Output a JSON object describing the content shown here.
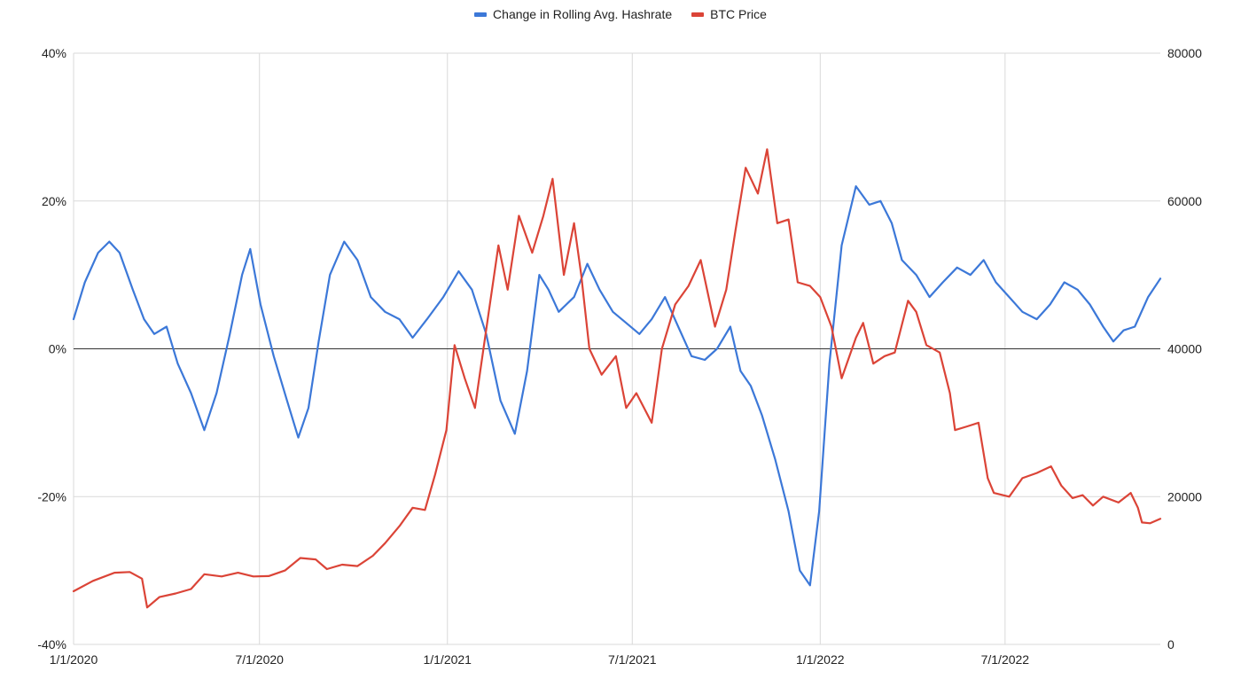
{
  "chart_data": {
    "type": "line",
    "title": "",
    "legend_position": "top-center",
    "grid": true,
    "x": {
      "type": "date",
      "min": "2020-01-01",
      "max": "2022-11-30",
      "ticks": [
        "2020-01-01",
        "2020-07-01",
        "2021-01-01",
        "2021-07-01",
        "2022-01-01",
        "2022-07-01"
      ],
      "tick_labels": [
        "1/1/2020",
        "7/1/2020",
        "1/1/2021",
        "7/1/2021",
        "1/1/2022",
        "7/1/2022"
      ]
    },
    "y_left": {
      "min": -40,
      "max": 40,
      "ticks": [
        -40,
        -20,
        0,
        20,
        40
      ],
      "tick_labels": [
        "-40%",
        "-20%",
        "0%",
        "20%",
        "40%"
      ]
    },
    "y_right": {
      "min": 0,
      "max": 80000,
      "ticks": [
        0,
        20000,
        40000,
        60000,
        80000
      ],
      "tick_labels": [
        "0",
        "20000",
        "40000",
        "60000",
        "80000"
      ]
    },
    "series": [
      {
        "name": "Change in Rolling Avg. Hashrate",
        "axis": "left",
        "color": "#3c78d8",
        "points": [
          [
            "2020-01-01",
            4
          ],
          [
            "2020-01-12",
            9
          ],
          [
            "2020-01-25",
            13
          ],
          [
            "2020-02-05",
            14.5
          ],
          [
            "2020-02-15",
            13
          ],
          [
            "2020-02-28",
            8
          ],
          [
            "2020-03-10",
            4
          ],
          [
            "2020-03-20",
            2
          ],
          [
            "2020-04-01",
            3
          ],
          [
            "2020-04-12",
            -2
          ],
          [
            "2020-04-25",
            -6
          ],
          [
            "2020-05-08",
            -11
          ],
          [
            "2020-05-20",
            -6
          ],
          [
            "2020-06-02",
            2
          ],
          [
            "2020-06-14",
            10
          ],
          [
            "2020-06-22",
            13.5
          ],
          [
            "2020-07-02",
            6
          ],
          [
            "2020-07-15",
            -1
          ],
          [
            "2020-07-28",
            -7
          ],
          [
            "2020-08-08",
            -12
          ],
          [
            "2020-08-18",
            -8
          ],
          [
            "2020-08-28",
            1
          ],
          [
            "2020-09-08",
            10
          ],
          [
            "2020-09-22",
            14.5
          ],
          [
            "2020-10-05",
            12
          ],
          [
            "2020-10-18",
            7
          ],
          [
            "2020-11-01",
            5
          ],
          [
            "2020-11-15",
            4
          ],
          [
            "2020-11-28",
            1.5
          ],
          [
            "2020-12-12",
            4
          ],
          [
            "2020-12-28",
            7
          ],
          [
            "2021-01-12",
            10.5
          ],
          [
            "2021-01-25",
            8
          ],
          [
            "2021-02-08",
            2
          ],
          [
            "2021-02-22",
            -7
          ],
          [
            "2021-03-08",
            -11.5
          ],
          [
            "2021-03-20",
            -3
          ],
          [
            "2021-04-01",
            10
          ],
          [
            "2021-04-10",
            8
          ],
          [
            "2021-04-20",
            5
          ],
          [
            "2021-05-05",
            7
          ],
          [
            "2021-05-18",
            11.5
          ],
          [
            "2021-05-30",
            8
          ],
          [
            "2021-06-12",
            5
          ],
          [
            "2021-06-25",
            3.5
          ],
          [
            "2021-07-08",
            2
          ],
          [
            "2021-07-20",
            4
          ],
          [
            "2021-08-02",
            7
          ],
          [
            "2021-08-15",
            3
          ],
          [
            "2021-08-28",
            -1
          ],
          [
            "2021-09-10",
            -1.5
          ],
          [
            "2021-09-22",
            0
          ],
          [
            "2021-10-05",
            3
          ],
          [
            "2021-10-15",
            -3
          ],
          [
            "2021-10-25",
            -5
          ],
          [
            "2021-11-05",
            -9
          ],
          [
            "2021-11-18",
            -15
          ],
          [
            "2021-12-01",
            -22
          ],
          [
            "2021-12-12",
            -30
          ],
          [
            "2021-12-22",
            -32
          ],
          [
            "2021-12-31",
            -22
          ],
          [
            "2022-01-10",
            -2
          ],
          [
            "2022-01-22",
            14
          ],
          [
            "2022-02-05",
            22
          ],
          [
            "2022-02-18",
            19.5
          ],
          [
            "2022-03-01",
            20
          ],
          [
            "2022-03-12",
            17
          ],
          [
            "2022-03-22",
            12
          ],
          [
            "2022-04-05",
            10
          ],
          [
            "2022-04-18",
            7
          ],
          [
            "2022-05-01",
            9
          ],
          [
            "2022-05-15",
            11
          ],
          [
            "2022-05-28",
            10
          ],
          [
            "2022-06-10",
            12
          ],
          [
            "2022-06-22",
            9
          ],
          [
            "2022-07-05",
            7
          ],
          [
            "2022-07-18",
            5
          ],
          [
            "2022-08-01",
            4
          ],
          [
            "2022-08-14",
            6
          ],
          [
            "2022-08-28",
            9
          ],
          [
            "2022-09-10",
            8
          ],
          [
            "2022-09-22",
            6
          ],
          [
            "2022-10-05",
            3
          ],
          [
            "2022-10-15",
            1
          ],
          [
            "2022-10-25",
            2.5
          ],
          [
            "2022-11-05",
            3
          ],
          [
            "2022-11-18",
            7
          ],
          [
            "2022-11-30",
            9.5
          ]
        ]
      },
      {
        "name": "BTC Price",
        "axis": "right",
        "color": "#db4437",
        "points": [
          [
            "2020-01-01",
            7200
          ],
          [
            "2020-01-20",
            8600
          ],
          [
            "2020-02-10",
            9700
          ],
          [
            "2020-02-25",
            9800
          ],
          [
            "2020-03-08",
            8900
          ],
          [
            "2020-03-13",
            5000
          ],
          [
            "2020-03-25",
            6400
          ],
          [
            "2020-04-10",
            6900
          ],
          [
            "2020-04-25",
            7500
          ],
          [
            "2020-05-08",
            9500
          ],
          [
            "2020-05-25",
            9200
          ],
          [
            "2020-06-10",
            9700
          ],
          [
            "2020-06-25",
            9200
          ],
          [
            "2020-07-10",
            9250
          ],
          [
            "2020-07-26",
            10000
          ],
          [
            "2020-08-10",
            11700
          ],
          [
            "2020-08-25",
            11500
          ],
          [
            "2020-09-05",
            10200
          ],
          [
            "2020-09-20",
            10800
          ],
          [
            "2020-10-05",
            10600
          ],
          [
            "2020-10-20",
            12000
          ],
          [
            "2020-11-01",
            13700
          ],
          [
            "2020-11-15",
            16000
          ],
          [
            "2020-11-28",
            18500
          ],
          [
            "2020-12-10",
            18200
          ],
          [
            "2020-12-20",
            23000
          ],
          [
            "2020-12-31",
            29000
          ],
          [
            "2021-01-08",
            40500
          ],
          [
            "2021-01-18",
            36000
          ],
          [
            "2021-01-28",
            32000
          ],
          [
            "2021-02-10",
            44500
          ],
          [
            "2021-02-20",
            54000
          ],
          [
            "2021-03-01",
            48000
          ],
          [
            "2021-03-12",
            58000
          ],
          [
            "2021-03-25",
            53000
          ],
          [
            "2021-04-05",
            58000
          ],
          [
            "2021-04-14",
            63000
          ],
          [
            "2021-04-25",
            50000
          ],
          [
            "2021-05-05",
            57000
          ],
          [
            "2021-05-12",
            50000
          ],
          [
            "2021-05-20",
            40000
          ],
          [
            "2021-06-01",
            36500
          ],
          [
            "2021-06-15",
            39000
          ],
          [
            "2021-06-25",
            32000
          ],
          [
            "2021-07-05",
            34000
          ],
          [
            "2021-07-20",
            30000
          ],
          [
            "2021-07-30",
            40000
          ],
          [
            "2021-08-12",
            46000
          ],
          [
            "2021-08-25",
            48500
          ],
          [
            "2021-09-06",
            52000
          ],
          [
            "2021-09-20",
            43000
          ],
          [
            "2021-10-01",
            48000
          ],
          [
            "2021-10-10",
            56000
          ],
          [
            "2021-10-20",
            64500
          ],
          [
            "2021-11-01",
            61000
          ],
          [
            "2021-11-10",
            67000
          ],
          [
            "2021-11-20",
            57000
          ],
          [
            "2021-12-01",
            57500
          ],
          [
            "2021-12-10",
            49000
          ],
          [
            "2021-12-22",
            48500
          ],
          [
            "2022-01-01",
            47000
          ],
          [
            "2022-01-12",
            43000
          ],
          [
            "2022-01-22",
            36000
          ],
          [
            "2022-02-05",
            41500
          ],
          [
            "2022-02-12",
            43500
          ],
          [
            "2022-02-22",
            38000
          ],
          [
            "2022-03-05",
            39000
          ],
          [
            "2022-03-15",
            39500
          ],
          [
            "2022-03-28",
            46500
          ],
          [
            "2022-04-05",
            45000
          ],
          [
            "2022-04-15",
            40500
          ],
          [
            "2022-04-28",
            39500
          ],
          [
            "2022-05-08",
            34000
          ],
          [
            "2022-05-13",
            29000
          ],
          [
            "2022-05-25",
            29500
          ],
          [
            "2022-06-05",
            30000
          ],
          [
            "2022-06-14",
            22500
          ],
          [
            "2022-06-20",
            20500
          ],
          [
            "2022-07-05",
            20000
          ],
          [
            "2022-07-18",
            22500
          ],
          [
            "2022-08-01",
            23200
          ],
          [
            "2022-08-15",
            24100
          ],
          [
            "2022-08-25",
            21500
          ],
          [
            "2022-09-05",
            19800
          ],
          [
            "2022-09-15",
            20200
          ],
          [
            "2022-09-25",
            18800
          ],
          [
            "2022-10-05",
            20000
          ],
          [
            "2022-10-20",
            19200
          ],
          [
            "2022-11-01",
            20500
          ],
          [
            "2022-11-08",
            18500
          ],
          [
            "2022-11-12",
            16500
          ],
          [
            "2022-11-20",
            16400
          ],
          [
            "2022-11-30",
            17000
          ]
        ]
      }
    ]
  }
}
